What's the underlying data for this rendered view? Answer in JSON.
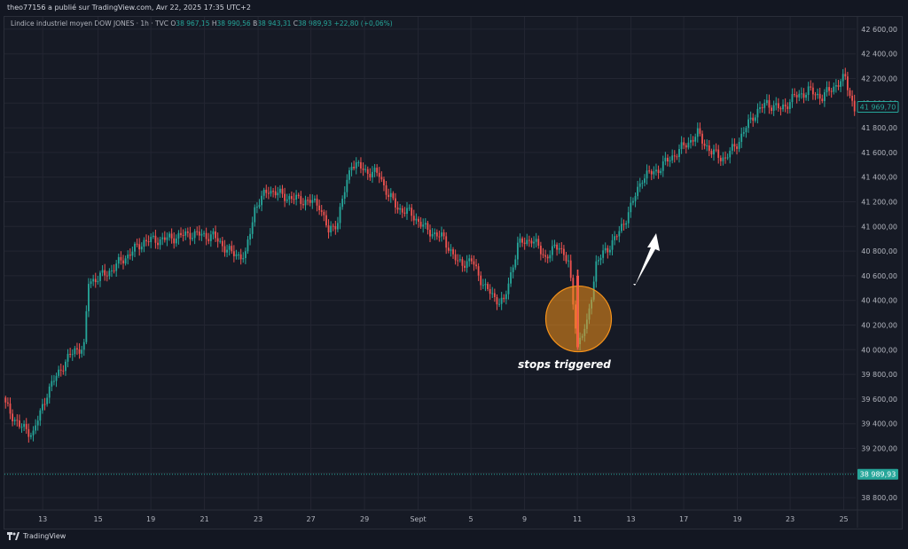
{
  "header": {
    "published_by": "theo77156 a publié sur TradingView.com, Avr 22, 2025 17:35 UTC+2"
  },
  "legend": {
    "symbol": "Lindice industriel moyen DOW JONES · 1h · TVC",
    "o_label": "O",
    "o_value": "38 967,15",
    "h_label": "H",
    "h_value": "38 990,56",
    "b_label": "B",
    "b_value": "38 943,31",
    "c_label": "C",
    "c_value": "38 989,93",
    "change": "+22,80 (+0,06%)"
  },
  "footer": {
    "brand": "TradingView"
  },
  "colors": {
    "up": "#26a69a",
    "down": "#ef5350",
    "background": "#161a25",
    "grid": "#232632",
    "annotation_circle": "#f7931a"
  },
  "chart_data": {
    "type": "candlestick",
    "ylim": [
      38700,
      42700
    ],
    "y_ticks": [
      "42 600,00",
      "42 400,00",
      "42 200,00",
      "42 000,00",
      "41 800,00",
      "41 600,00",
      "41 400,00",
      "41 200,00",
      "41 000,00",
      "40 800,00",
      "40 600,00",
      "40 400,00",
      "40 200,00",
      "40 000,00",
      "39 800,00",
      "39 600,00",
      "39 400,00",
      "39 200,00",
      "39 000,00",
      "38 800,00"
    ],
    "y_tick_values": [
      42600,
      42400,
      42200,
      42000,
      41800,
      41600,
      41400,
      41200,
      41000,
      40800,
      40600,
      40400,
      40200,
      40000,
      39800,
      39600,
      39400,
      39200,
      39000,
      38800
    ],
    "x_ticks": [
      "13",
      "15",
      "19",
      "21",
      "23",
      "27",
      "29",
      "Sept",
      "5",
      "9",
      "11",
      "13",
      "17",
      "19",
      "23",
      "25"
    ],
    "x_tick_positions": [
      0.045,
      0.11,
      0.172,
      0.235,
      0.298,
      0.36,
      0.423,
      0.486,
      0.548,
      0.611,
      0.673,
      0.736,
      0.798,
      0.861,
      0.923,
      0.986
    ],
    "last_price_label": "41 969,70",
    "last_price": 41969.7,
    "current_price_label": "38 989,93",
    "current_price": 38989.93,
    "annotation": {
      "text": "stops triggered"
    },
    "key_points": [
      [
        0,
        39550
      ],
      [
        6,
        39380
      ],
      [
        12,
        39320
      ],
      [
        18,
        39650
      ],
      [
        24,
        39850
      ],
      [
        30,
        40000
      ],
      [
        34,
        40020
      ],
      [
        36,
        40550
      ],
      [
        44,
        40620
      ],
      [
        52,
        40750
      ],
      [
        60,
        40880
      ],
      [
        70,
        40900
      ],
      [
        80,
        40940
      ],
      [
        90,
        40920
      ],
      [
        98,
        40780
      ],
      [
        104,
        40760
      ],
      [
        108,
        41150
      ],
      [
        114,
        41300
      ],
      [
        120,
        41250
      ],
      [
        126,
        41220
      ],
      [
        132,
        41200
      ],
      [
        136,
        41180
      ],
      [
        140,
        40950
      ],
      [
        144,
        41050
      ],
      [
        150,
        41520
      ],
      [
        156,
        41450
      ],
      [
        162,
        41420
      ],
      [
        166,
        41250
      ],
      [
        170,
        41150
      ],
      [
        176,
        41100
      ],
      [
        182,
        40980
      ],
      [
        190,
        40900
      ],
      [
        196,
        40700
      ],
      [
        202,
        40720
      ],
      [
        208,
        40500
      ],
      [
        212,
        40420
      ],
      [
        216,
        40380
      ],
      [
        222,
        40850
      ],
      [
        228,
        40900
      ],
      [
        234,
        40750
      ],
      [
        240,
        40850
      ],
      [
        244,
        40700
      ],
      [
        248,
        40050
      ],
      [
        252,
        40200
      ],
      [
        256,
        40700
      ],
      [
        260,
        40800
      ],
      [
        266,
        40950
      ],
      [
        272,
        41200
      ],
      [
        276,
        41400
      ],
      [
        282,
        41450
      ],
      [
        288,
        41550
      ],
      [
        294,
        41650
      ],
      [
        300,
        41750
      ],
      [
        306,
        41600
      ],
      [
        312,
        41550
      ],
      [
        318,
        41700
      ],
      [
        324,
        41900
      ],
      [
        330,
        42000
      ],
      [
        336,
        41950
      ],
      [
        342,
        42050
      ],
      [
        348,
        42100
      ],
      [
        354,
        42050
      ],
      [
        360,
        42150
      ],
      [
        364,
        42200
      ],
      [
        368,
        41950
      ]
    ]
  }
}
